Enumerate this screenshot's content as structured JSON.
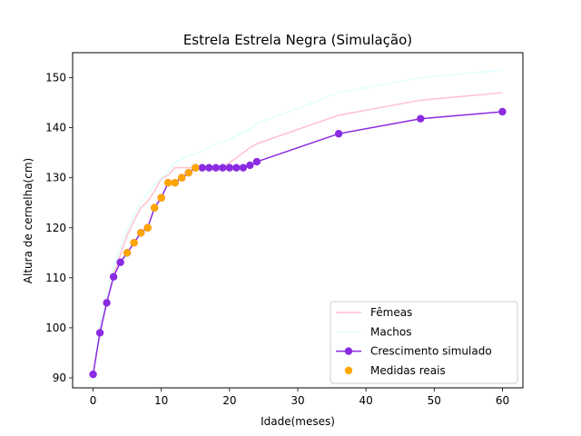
{
  "chart_data": {
    "type": "line",
    "title": "Estrela Estrela Negra (Simulação)",
    "xlabel": "Idade(meses)",
    "ylabel": "Altura de cernelha(cm)",
    "xlim": [
      -3,
      63
    ],
    "ylim": [
      88,
      155
    ],
    "xticks": [
      0,
      10,
      20,
      30,
      40,
      50,
      60
    ],
    "yticks": [
      90,
      100,
      110,
      120,
      130,
      140,
      150
    ],
    "grid": false,
    "legend_position": "lower-right",
    "series": [
      {
        "name": "Fêmeas",
        "kind": "line",
        "color": "#ffc0cb",
        "x": [
          0,
          1,
          2,
          3,
          4,
          5,
          6,
          7,
          8,
          9,
          10,
          11,
          12,
          13,
          14,
          15,
          16,
          17,
          18,
          19,
          20,
          21,
          22,
          23,
          24,
          36,
          48,
          60
        ],
        "y": [
          90.7,
          99.2,
          105.2,
          110.5,
          114.6,
          118.5,
          121.4,
          124.0,
          125.3,
          127.3,
          129.8,
          130.5,
          132.0,
          132.0,
          132.0,
          132.0,
          132.0,
          132.0,
          132.0,
          132.1,
          133.0,
          134.0,
          135.0,
          136.0,
          136.8,
          142.5,
          145.5,
          147.0
        ]
      },
      {
        "name": "Machos",
        "kind": "line",
        "color": "#e0ffff",
        "x": [
          0,
          1,
          2,
          3,
          4,
          5,
          6,
          7,
          8,
          9,
          10,
          11,
          12,
          13,
          14,
          15,
          16,
          17,
          18,
          19,
          20,
          21,
          22,
          23,
          24,
          36,
          48,
          60
        ],
        "y": [
          90.8,
          100.5,
          106.5,
          112.0,
          116.0,
          119.5,
          122.5,
          125.0,
          127.0,
          128.5,
          130.0,
          131.2,
          133.0,
          133.8,
          134.3,
          134.8,
          135.4,
          136.0,
          136.6,
          137.2,
          137.8,
          138.4,
          139.1,
          139.8,
          140.8,
          147.0,
          150.0,
          151.5
        ]
      },
      {
        "name": "Crescimento simulado",
        "kind": "line-marker",
        "color": "#8a2be2",
        "x": [
          0,
          1,
          2,
          3,
          4,
          5,
          6,
          7,
          8,
          9,
          10,
          11,
          12,
          13,
          14,
          15,
          16,
          17,
          18,
          19,
          20,
          21,
          22,
          23,
          24,
          36,
          48,
          60
        ],
        "y": [
          90.7,
          99.0,
          105.0,
          110.2,
          113.1,
          115.0,
          117.0,
          119.0,
          120.0,
          124.0,
          126.0,
          129.0,
          129.0,
          130.0,
          131.0,
          132.0,
          132.0,
          132.0,
          132.0,
          132.0,
          132.0,
          132.0,
          132.0,
          132.5,
          133.2,
          138.8,
          141.8,
          143.2
        ]
      },
      {
        "name": "Medidas reais",
        "kind": "scatter",
        "color": "#ffa500",
        "x": [
          5,
          6,
          7,
          8,
          9,
          10,
          11,
          12,
          13,
          14,
          15
        ],
        "y": [
          115.0,
          117.0,
          119.0,
          120.0,
          124.0,
          126.0,
          129.0,
          129.0,
          130.0,
          131.0,
          132.0
        ]
      }
    ]
  }
}
